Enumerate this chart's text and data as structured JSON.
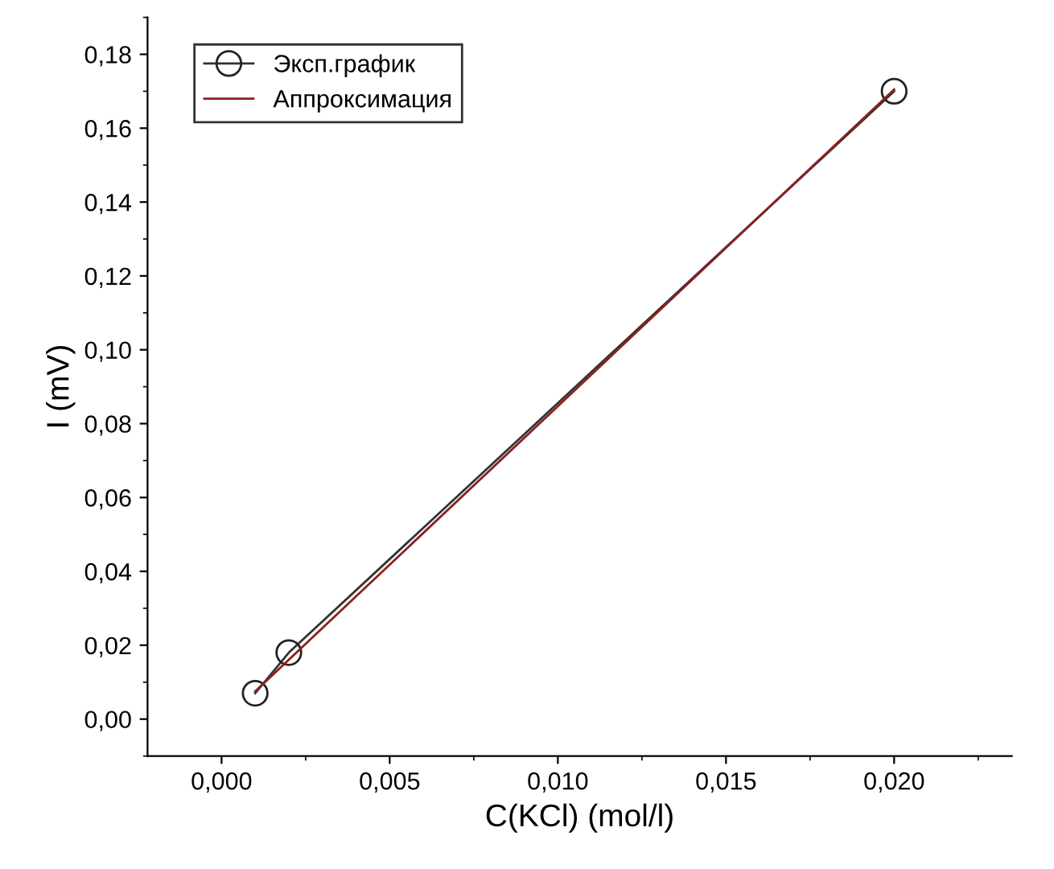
{
  "chart_data": {
    "type": "line",
    "xlabel": "C(KCl) (mol/l)",
    "ylabel": "I (mV)",
    "xlim": [
      -0.0022,
      0.0235
    ],
    "ylim": [
      -0.01,
      0.19
    ],
    "xticks": [
      {
        "value": 0.0,
        "label": "0,000"
      },
      {
        "value": 0.005,
        "label": "0,005"
      },
      {
        "value": 0.01,
        "label": "0,010"
      },
      {
        "value": 0.015,
        "label": "0,015"
      },
      {
        "value": 0.02,
        "label": "0,020"
      }
    ],
    "yticks": [
      {
        "value": 0.0,
        "label": "0,00"
      },
      {
        "value": 0.02,
        "label": "0,02"
      },
      {
        "value": 0.04,
        "label": "0,04"
      },
      {
        "value": 0.06,
        "label": "0,06"
      },
      {
        "value": 0.08,
        "label": "0,08"
      },
      {
        "value": 0.1,
        "label": "0,10"
      },
      {
        "value": 0.12,
        "label": "0,12"
      },
      {
        "value": 0.14,
        "label": "0,14"
      },
      {
        "value": 0.16,
        "label": "0,16"
      },
      {
        "value": 0.18,
        "label": "0,18"
      }
    ],
    "grid": false,
    "legend": "top left",
    "series": [
      {
        "name": "Эксп.график",
        "color": "#333333",
        "marker": "circle",
        "x": [
          0.001,
          0.002,
          0.02
        ],
        "values": [
          0.007,
          0.018,
          0.17
        ]
      },
      {
        "name": "Аппроксимация",
        "color": "#8b2020",
        "marker": "none",
        "x": [
          0.001,
          0.02
        ],
        "values": [
          0.0075,
          0.1705
        ]
      }
    ]
  }
}
